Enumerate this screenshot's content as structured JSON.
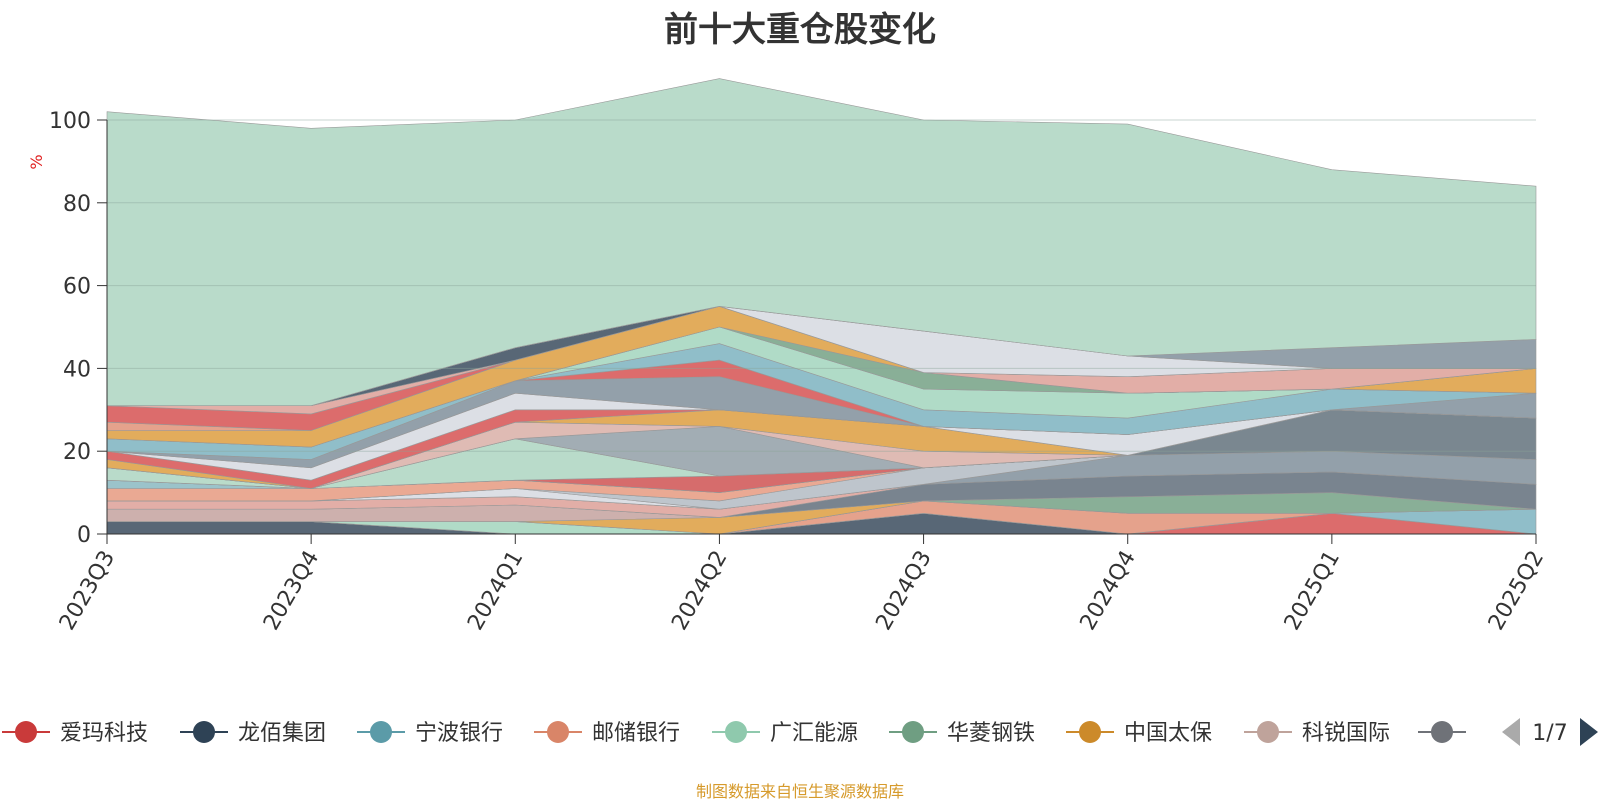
{
  "chart_data": {
    "type": "area",
    "title": "前十大重仓股变化",
    "ylabel": "%",
    "ylim": [
      0,
      100
    ],
    "yticks": [
      0,
      20,
      40,
      60,
      80,
      100
    ],
    "categories": [
      "2023Q3",
      "2023Q4",
      "2024Q1",
      "2024Q2",
      "2024Q3",
      "2024Q4",
      "2025Q1",
      "2025Q2"
    ],
    "grid": true,
    "legend_position": "bottom",
    "legend_page": "1/7",
    "series": [
      {
        "name": "爱玛科技",
        "color": "#d95f5f",
        "values": [
          0,
          0,
          0,
          0,
          0,
          0,
          5,
          0
        ]
      },
      {
        "name": "龙佰集团",
        "color": "#4a5a6a",
        "values": [
          3,
          3,
          0,
          0,
          5,
          0,
          0,
          0
        ]
      },
      {
        "name": "宁波银行",
        "color": "#87b9c4",
        "values": [
          0,
          0,
          0,
          0,
          0,
          0,
          0,
          6
        ]
      },
      {
        "name": "邮储银行",
        "color": "#e39a82",
        "values": [
          0,
          0,
          0,
          0,
          3,
          5,
          0,
          0
        ]
      },
      {
        "name": "广汇能源",
        "color": "#a9d8c2",
        "values": [
          0,
          0,
          3,
          0,
          0,
          0,
          0,
          0
        ]
      },
      {
        "name": "华菱钢铁",
        "color": "#7fa88e",
        "values": [
          0,
          0,
          0,
          0,
          0,
          4,
          5,
          0
        ]
      },
      {
        "name": "中国太保",
        "color": "#e0a54e",
        "values": [
          0,
          0,
          0,
          4,
          0,
          0,
          0,
          0
        ]
      },
      {
        "name": "科锐国际",
        "color": "#c9a9a6",
        "values": [
          3,
          3,
          4,
          0,
          0,
          0,
          0,
          0
        ]
      },
      {
        "name": "",
        "color": "#6e7a85",
        "values": [
          0,
          0,
          0,
          0,
          4,
          5,
          5,
          6
        ]
      },
      {
        "name": "",
        "color": "#e0a7a0",
        "values": [
          2,
          2,
          2,
          2,
          0,
          0,
          0,
          0
        ]
      },
      {
        "name": "",
        "color": "#8a98a3",
        "values": [
          0,
          0,
          0,
          0,
          0,
          5,
          5,
          6
        ]
      },
      {
        "name": "",
        "color": "#d9dce3",
        "values": [
          0,
          0,
          2,
          0,
          0,
          0,
          0,
          0
        ]
      },
      {
        "name": "",
        "color": "#b8c0c8",
        "values": [
          0,
          0,
          0,
          2,
          4,
          0,
          0,
          0
        ]
      },
      {
        "name": "",
        "color": "#e8a28a",
        "values": [
          3,
          3,
          2,
          2,
          0,
          0,
          0,
          0
        ]
      },
      {
        "name": "",
        "color": "#92bec6",
        "values": [
          2,
          0,
          0,
          0,
          0,
          0,
          0,
          0
        ]
      },
      {
        "name": "",
        "color": "#6f7d87",
        "values": [
          0,
          0,
          0,
          0,
          0,
          0,
          10,
          10
        ]
      },
      {
        "name": "",
        "color": "#d26060",
        "values": [
          0,
          0,
          0,
          4,
          0,
          0,
          0,
          0
        ]
      },
      {
        "name": "",
        "color": "#b3d8c6",
        "values": [
          3,
          0,
          10,
          0,
          0,
          0,
          0,
          0
        ]
      },
      {
        "name": "",
        "color": "#9aa6ae",
        "values": [
          0,
          0,
          0,
          12,
          0,
          0,
          0,
          0
        ]
      },
      {
        "name": "",
        "color": "#dcb5ae",
        "values": [
          0,
          0,
          4,
          0,
          4,
          0,
          0,
          0
        ]
      },
      {
        "name": "",
        "color": "#e0a54e",
        "values": [
          2,
          0,
          0,
          4,
          6,
          0,
          0,
          0
        ]
      },
      {
        "name": "",
        "color": "#d95f5f",
        "values": [
          2,
          2,
          3,
          0,
          0,
          0,
          0,
          0
        ]
      },
      {
        "name": "",
        "color": "#d9dce3",
        "values": [
          0,
          3,
          4,
          0,
          0,
          5,
          0,
          0
        ]
      },
      {
        "name": "",
        "color": "#8a98a3",
        "values": [
          0,
          2,
          3,
          8,
          0,
          0,
          0,
          6
        ]
      },
      {
        "name": "",
        "color": "#d95f5f",
        "values": [
          0,
          0,
          0,
          4,
          0,
          0,
          0,
          0
        ]
      },
      {
        "name": "",
        "color": "#87b9c4",
        "values": [
          3,
          3,
          0,
          4,
          4,
          4,
          5,
          0
        ]
      },
      {
        "name": "",
        "color": "#a9d8c2",
        "values": [
          0,
          0,
          0,
          4,
          5,
          6,
          0,
          0
        ]
      },
      {
        "name": "",
        "color": "#7fa88e",
        "values": [
          0,
          0,
          0,
          0,
          4,
          0,
          0,
          0
        ]
      },
      {
        "name": "",
        "color": "#e0a54e",
        "values": [
          2,
          4,
          5,
          5,
          0,
          0,
          0,
          6
        ]
      },
      {
        "name": "",
        "color": "#e39a82",
        "values": [
          2,
          0,
          0,
          0,
          0,
          0,
          0,
          0
        ]
      },
      {
        "name": "",
        "color": "#d95f5f",
        "values": [
          4,
          4,
          0,
          0,
          0,
          0,
          0,
          0
        ]
      },
      {
        "name": "",
        "color": "#e0a7a0",
        "values": [
          0,
          2,
          0,
          0,
          0,
          4,
          5,
          0
        ]
      },
      {
        "name": "",
        "color": "#4a5a6a",
        "values": [
          0,
          0,
          3,
          0,
          0,
          0,
          0,
          0
        ]
      },
      {
        "name": "",
        "color": "#d9dce3",
        "values": [
          0,
          0,
          0,
          0,
          10,
          5,
          0,
          0
        ]
      },
      {
        "name": "",
        "color": "#8a98a3",
        "values": [
          0,
          0,
          0,
          0,
          0,
          0,
          5,
          7
        ]
      },
      {
        "name": "",
        "color": "#b3d8c6",
        "values": [
          71,
          67,
          55,
          55,
          51,
          56,
          43,
          37
        ]
      }
    ]
  },
  "footer": {
    "note": "制图数据来自恒生聚源数据库"
  }
}
